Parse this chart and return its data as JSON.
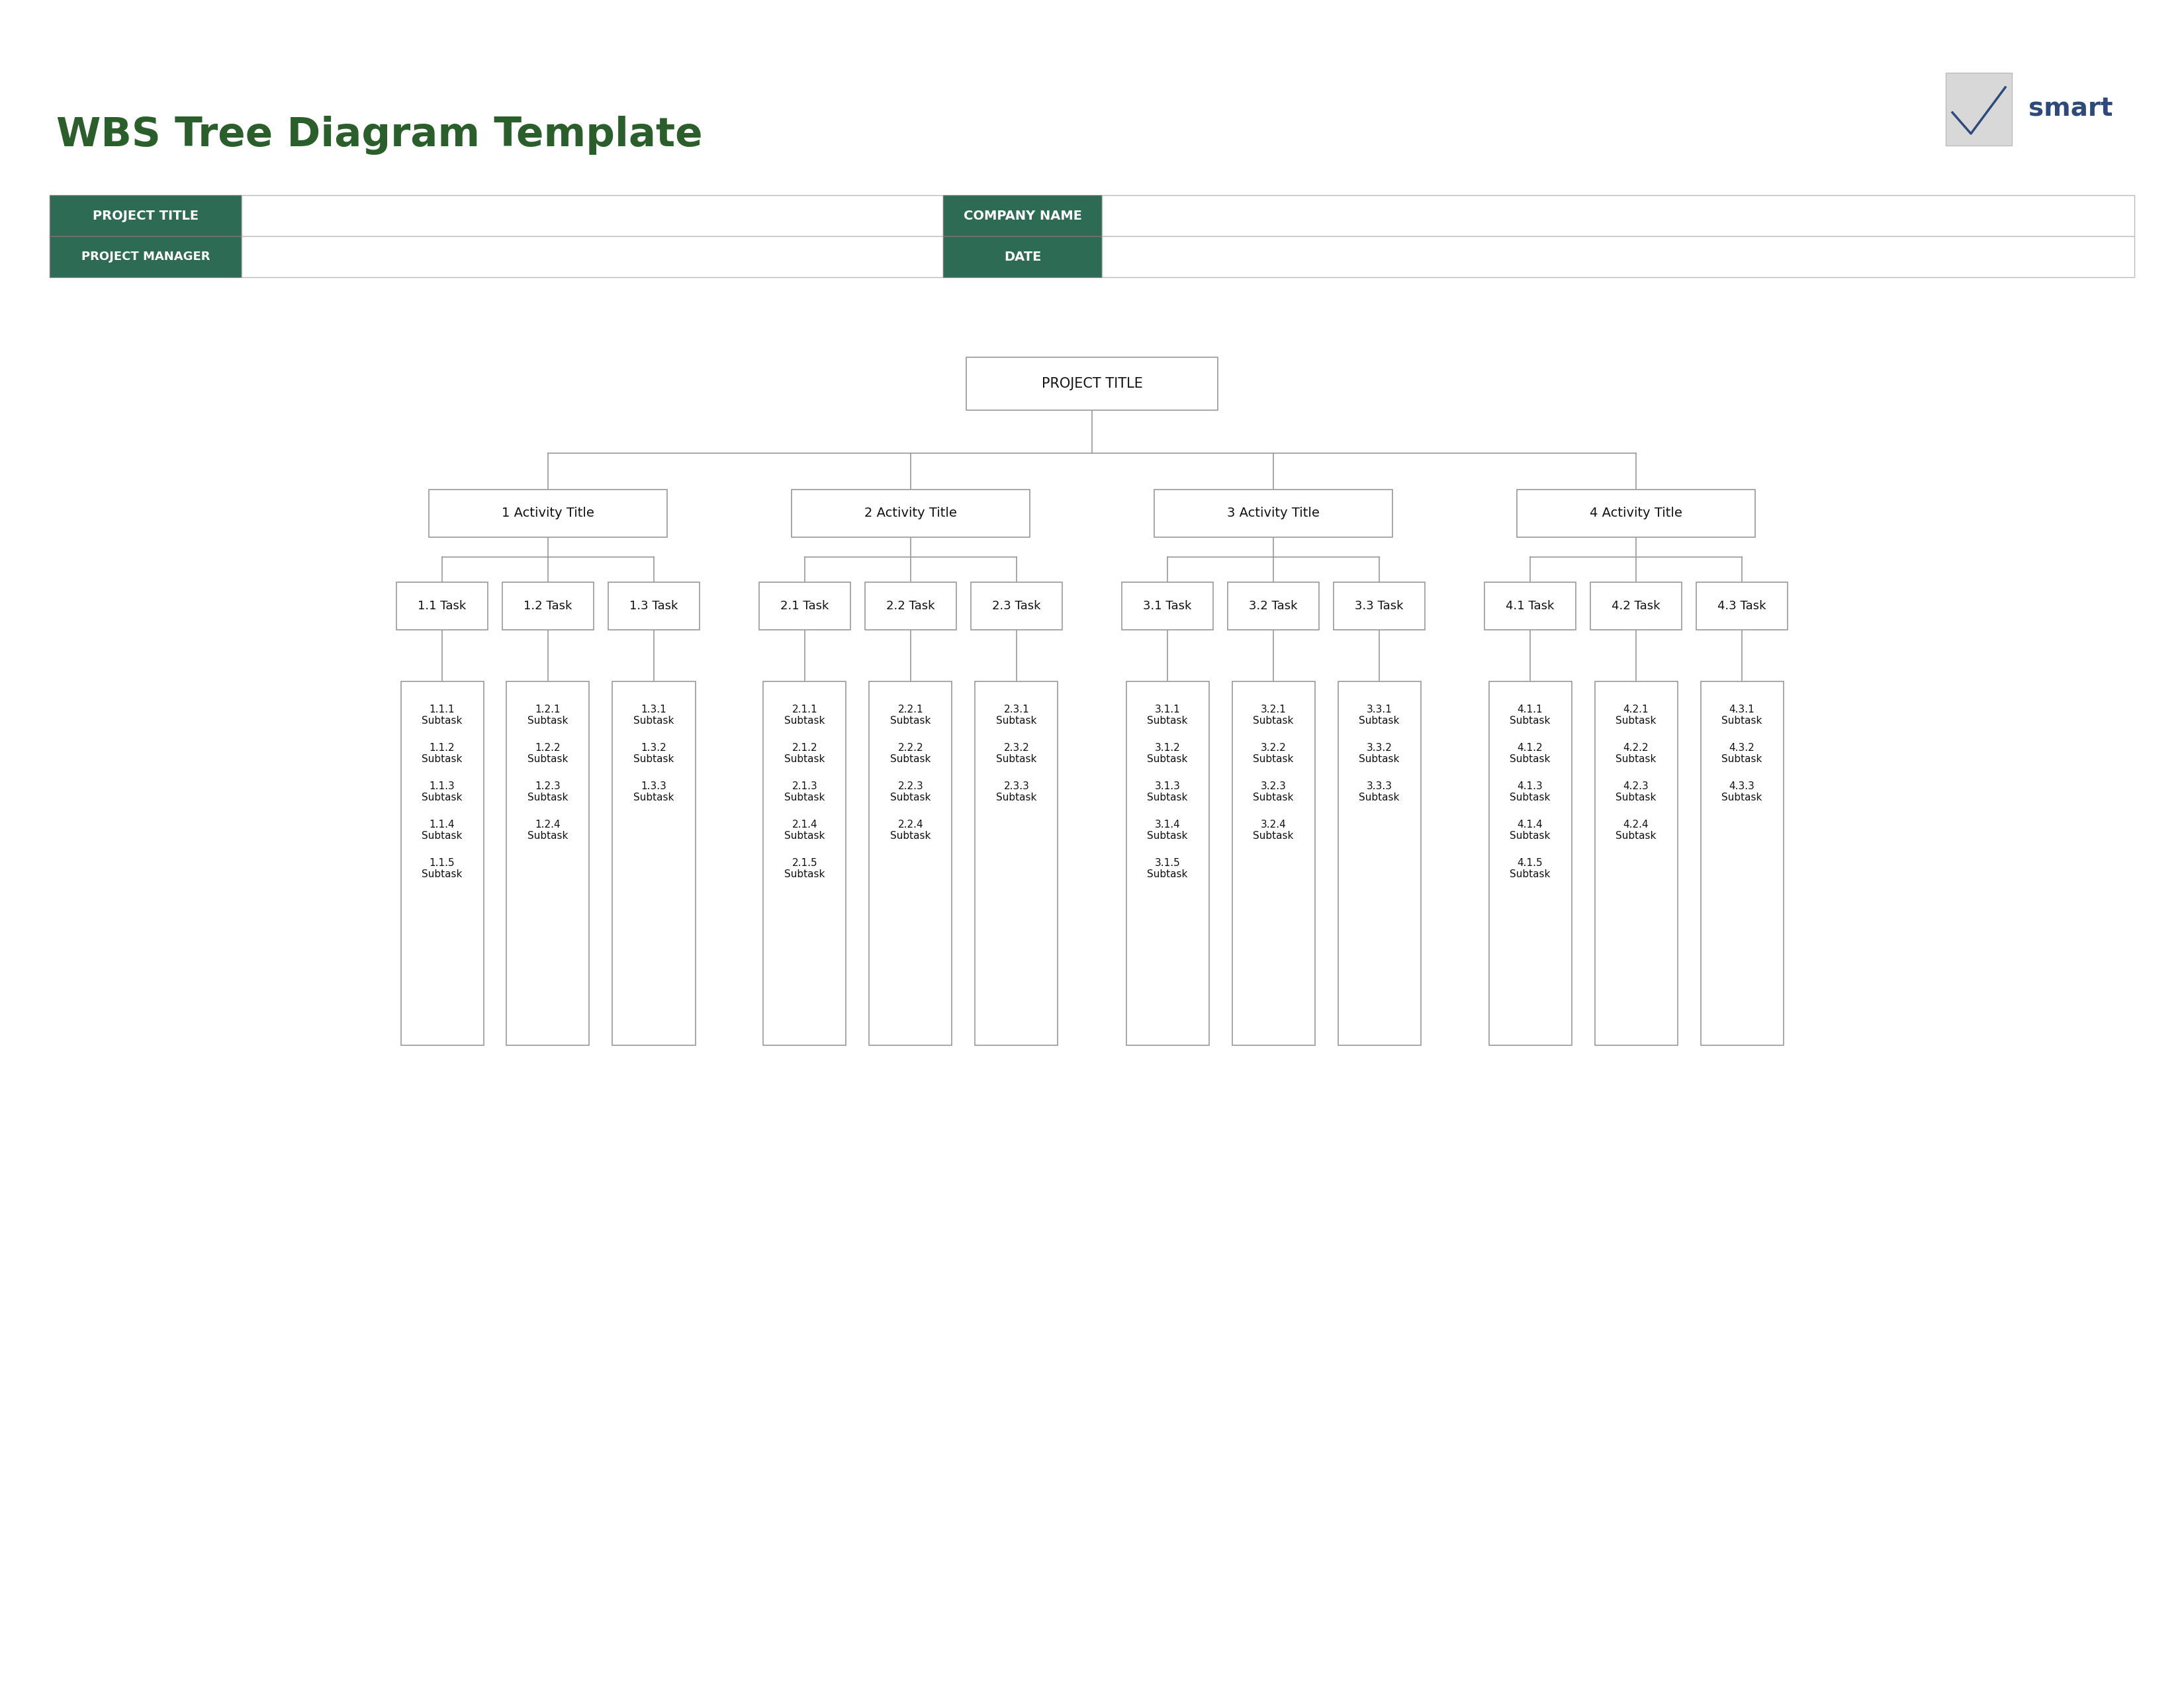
{
  "title": "WBS Tree Diagram Template",
  "title_color": "#2a5e2a",
  "title_fontsize": 44,
  "bg_color": "#ffffff",
  "dark_green": "#2d6b55",
  "box_border_color": "#999999",
  "box_text_color": "#111111",
  "root_label": "PROJECT TITLE",
  "activities": [
    "1 Activity Title",
    "2 Activity Title",
    "3 Activity Title",
    "4 Activity Title"
  ],
  "tasks": [
    [
      "1.1 Task",
      "1.2 Task",
      "1.3 Task"
    ],
    [
      "2.1 Task",
      "2.2 Task",
      "2.3 Task"
    ],
    [
      "3.1 Task",
      "3.2 Task",
      "3.3 Task"
    ],
    [
      "4.1 Task",
      "4.2 Task",
      "4.3 Task"
    ]
  ],
  "subtasks": [
    [
      [
        "1.1.1 Subtask",
        "1.1.2 Subtask",
        "1.1.3 Subtask",
        "1.1.4 Subtask",
        "1.1.5 Subtask"
      ],
      [
        "1.2.1 Subtask",
        "1.2.2 Subtask",
        "1.2.3 Subtask",
        "1.2.4 Subtask"
      ],
      [
        "1.3.1 Subtask",
        "1.3.2 Subtask",
        "1.3.3 Subtask"
      ]
    ],
    [
      [
        "2.1.1 Subtask",
        "2.1.2 Subtask",
        "2.1.3 Subtask",
        "2.1.4 Subtask",
        "2.1.5 Subtask"
      ],
      [
        "2.2.1 Subtask",
        "2.2.2 Subtask",
        "2.2.3 Subtask",
        "2.2.4 Subtask"
      ],
      [
        "2.3.1 Subtask",
        "2.3.2 Subtask",
        "2.3.3 Subtask"
      ]
    ],
    [
      [
        "3.1.1 Subtask",
        "3.1.2 Subtask",
        "3.1.3 Subtask",
        "3.1.4 Subtask",
        "3.1.5 Subtask"
      ],
      [
        "3.2.1 Subtask",
        "3.2.2 Subtask",
        "3.2.3 Subtask",
        "3.2.4 Subtask"
      ],
      [
        "3.3.1 Subtask",
        "3.3.2 Subtask",
        "3.3.3 Subtask"
      ]
    ],
    [
      [
        "4.1.1 Subtask",
        "4.1.2 Subtask",
        "4.1.3 Subtask",
        "4.1.4 Subtask",
        "4.1.5 Subtask"
      ],
      [
        "4.2.1 Subtask",
        "4.2.2 Subtask",
        "4.2.3 Subtask",
        "4.2.4 Subtask"
      ],
      [
        "4.3.1 Subtask",
        "4.3.2 Subtask",
        "4.3.3 Subtask"
      ]
    ]
  ],
  "smartsheet_color": "#2d4a7a",
  "line_color": "#999999"
}
